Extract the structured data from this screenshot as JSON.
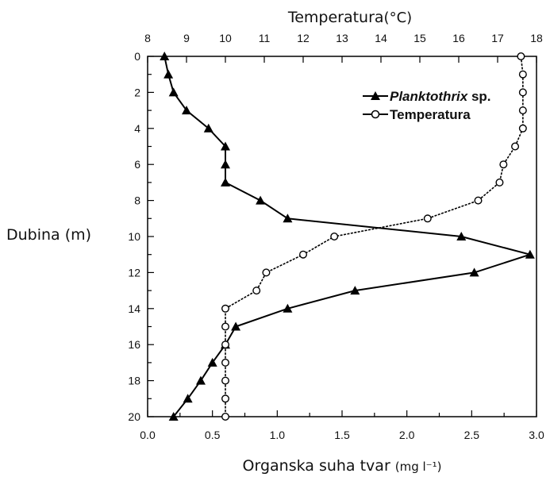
{
  "chart_data": {
    "type": "line",
    "top_axis_title": "Temperatura",
    "top_axis_unit": "(°C)",
    "bottom_axis_title": "Organska suha tvar",
    "bottom_axis_unit": "(mg l⁻¹)",
    "ylabel": "Dubina (m)",
    "depth_range": [
      0,
      20
    ],
    "depth_ticks": [
      "0",
      "2",
      "4",
      "6",
      "8",
      "10",
      "12",
      "14",
      "16",
      "18",
      "20"
    ],
    "organic_range": [
      0.0,
      3.0
    ],
    "organic_ticks": [
      "0.0",
      "0.5",
      "1.0",
      "1.5",
      "2.0",
      "2.5",
      "3.0"
    ],
    "temperature_range": [
      8,
      18
    ],
    "temperature_ticks": [
      "8",
      "9",
      "10",
      "11",
      "12",
      "13",
      "14",
      "15",
      "16",
      "17",
      "18"
    ],
    "legend_position": "top-right",
    "series": [
      {
        "name_italic": "Planktothrix",
        "name_suffix": " sp.",
        "marker": "filled-triangle",
        "axis": "bottom",
        "points": [
          {
            "depth": 0,
            "value": 0.13
          },
          {
            "depth": 1,
            "value": 0.16
          },
          {
            "depth": 2,
            "value": 0.2
          },
          {
            "depth": 3,
            "value": 0.3
          },
          {
            "depth": 4,
            "value": 0.47
          },
          {
            "depth": 5,
            "value": 0.6
          },
          {
            "depth": 6,
            "value": 0.6
          },
          {
            "depth": 7,
            "value": 0.6
          },
          {
            "depth": 8,
            "value": 0.87
          },
          {
            "depth": 9,
            "value": 1.08
          },
          {
            "depth": 10,
            "value": 2.42
          },
          {
            "depth": 11,
            "value": 2.95
          },
          {
            "depth": 12,
            "value": 2.52
          },
          {
            "depth": 13,
            "value": 1.6
          },
          {
            "depth": 14,
            "value": 1.08
          },
          {
            "depth": 15,
            "value": 0.68
          },
          {
            "depth": 16,
            "value": 0.6
          },
          {
            "depth": 17,
            "value": 0.5
          },
          {
            "depth": 18,
            "value": 0.41
          },
          {
            "depth": 19,
            "value": 0.31
          },
          {
            "depth": 20,
            "value": 0.2
          }
        ]
      },
      {
        "name": "Temperatura",
        "marker": "open-circle",
        "axis": "top",
        "points": [
          {
            "depth": 0,
            "value": 17.6
          },
          {
            "depth": 1,
            "value": 17.65
          },
          {
            "depth": 2,
            "value": 17.65
          },
          {
            "depth": 3,
            "value": 17.65
          },
          {
            "depth": 4,
            "value": 17.65
          },
          {
            "depth": 5,
            "value": 17.45
          },
          {
            "depth": 6,
            "value": 17.15
          },
          {
            "depth": 7,
            "value": 17.05
          },
          {
            "depth": 8,
            "value": 16.5
          },
          {
            "depth": 9,
            "value": 15.2
          },
          {
            "depth": 10,
            "value": 12.8
          },
          {
            "depth": 11,
            "value": 12.0
          },
          {
            "depth": 12,
            "value": 11.05
          },
          {
            "depth": 13,
            "value": 10.8
          },
          {
            "depth": 14,
            "value": 10.0
          },
          {
            "depth": 15,
            "value": 10.0
          },
          {
            "depth": 16,
            "value": 10.0
          },
          {
            "depth": 17,
            "value": 10.0
          },
          {
            "depth": 18,
            "value": 10.0
          },
          {
            "depth": 19,
            "value": 10.0
          },
          {
            "depth": 20,
            "value": 10.0
          }
        ]
      }
    ]
  }
}
